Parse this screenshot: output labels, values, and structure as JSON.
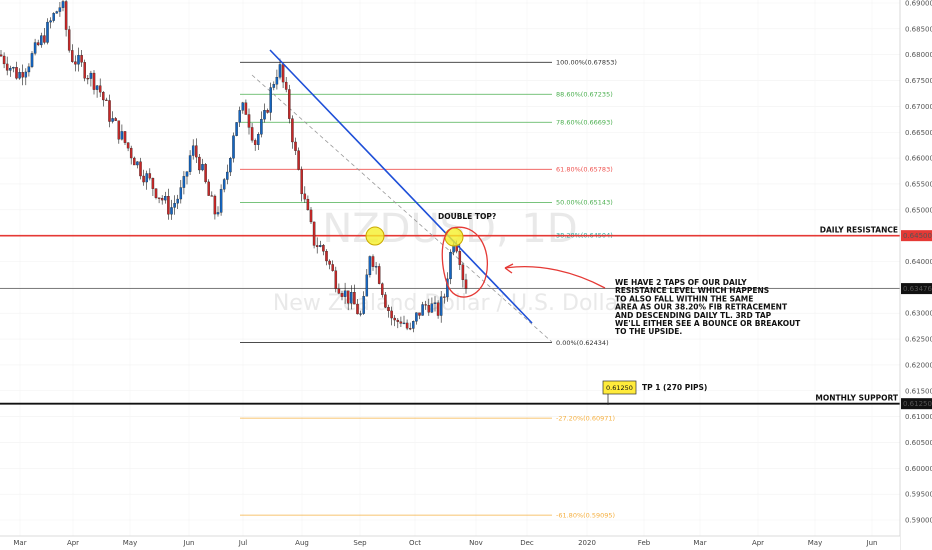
{
  "chart_data": {
    "type": "candlestick",
    "watermark": {
      "symbol": "NZDUSD, 1D",
      "name": "New Zealand Dollar / U.S. Dollar"
    },
    "ylim": [
      0.5885,
      0.6905
    ],
    "y_ticks": [
      "0.69000",
      "0.68500",
      "0.68000",
      "0.67500",
      "0.67000",
      "0.66500",
      "0.66000",
      "0.65500",
      "0.65000",
      "0.64500",
      "0.64000",
      "0.63500",
      "0.63000",
      "0.62500",
      "0.62000",
      "0.61500",
      "0.61000",
      "0.60500",
      "0.60000",
      "0.59500",
      "0.59000"
    ],
    "x_ticks": [
      {
        "label": "Mar",
        "x": 20
      },
      {
        "label": "Apr",
        "x": 73
      },
      {
        "label": "May",
        "x": 130
      },
      {
        "label": "Jun",
        "x": 189
      },
      {
        "label": "Jul",
        "x": 243
      },
      {
        "label": "Aug",
        "x": 302
      },
      {
        "label": "Sep",
        "x": 360
      },
      {
        "label": "Oct",
        "x": 415
      },
      {
        "label": "Nov",
        "x": 476
      },
      {
        "label": "Dec",
        "x": 527
      },
      {
        "label": "2020",
        "x": 587
      },
      {
        "label": "Feb",
        "x": 644
      },
      {
        "label": "Mar",
        "x": 700
      },
      {
        "label": "Apr",
        "x": 758
      },
      {
        "label": "May",
        "x": 815
      },
      {
        "label": "Jun",
        "x": 872
      }
    ],
    "current_price": "0.63476",
    "fib_levels": [
      {
        "label": "100.00%(0.67853)",
        "value": 0.67853,
        "color": "#333333"
      },
      {
        "label": "88.60%(0.67235)",
        "value": 0.67235,
        "color": "#4caf50"
      },
      {
        "label": "78.60%(0.66693)",
        "value": 0.66693,
        "color": "#4caf50"
      },
      {
        "label": "61.80%(0.65783)",
        "value": 0.65783,
        "color": "#ef5350"
      },
      {
        "label": "50.00%(0.65143)",
        "value": 0.65143,
        "color": "#4caf50"
      },
      {
        "label": "38.20%(0.64504)",
        "value": 0.64504,
        "color": "#26a69a"
      },
      {
        "label": "0.00%(0.62434)",
        "value": 0.62434,
        "color": "#333333"
      },
      {
        "label": "-27.20%(0.60971)",
        "value": 0.60971,
        "color": "#f5b041"
      },
      {
        "label": "-61.80%(0.59095)",
        "value": 0.59095,
        "color": "#f5b041"
      }
    ],
    "levels": [
      {
        "label": "DAILY RESISTANCE",
        "value": 0.645,
        "price": "0.64500",
        "color": "#e53935"
      },
      {
        "label": "MONTHLY SUPPORT",
        "value": 0.6125,
        "price": "0.61250",
        "color": "#111111"
      }
    ],
    "tp_badge": "0.61250",
    "tp_label": "TP 1 (270 PIPS)",
    "double_top_label": "DOUBLE TOP?",
    "annotation_lines": [
      "WE HAVE 2 TAPS OF OUR DAILY",
      "RESISTANCE LEVEL WHICH HAPPENS",
      "TO ALSO FALL WITHIN THE SAME",
      "AREA AS OUR 38.20% FIB RETRACEMENT",
      "AND DESCENDING DAILY TL. 3RD TAP",
      "WE'LL EITHER SEE A BOUNCE OR BREAKOUT",
      "TO THE UPSIDE."
    ],
    "path_points": [
      [
        0,
        0.68
      ],
      [
        18,
        0.676
      ],
      [
        30,
        0.679
      ],
      [
        45,
        0.684
      ],
      [
        55,
        0.688
      ],
      [
        62,
        0.69
      ],
      [
        70,
        0.68
      ],
      [
        85,
        0.677
      ],
      [
        98,
        0.674
      ],
      [
        110,
        0.668
      ],
      [
        125,
        0.663
      ],
      [
        140,
        0.658
      ],
      [
        155,
        0.654
      ],
      [
        170,
        0.65
      ],
      [
        183,
        0.654
      ],
      [
        192,
        0.662
      ],
      [
        200,
        0.659
      ],
      [
        208,
        0.653
      ],
      [
        216,
        0.649
      ],
      [
        226,
        0.656
      ],
      [
        235,
        0.667
      ],
      [
        245,
        0.67
      ],
      [
        255,
        0.663
      ],
      [
        265,
        0.668
      ],
      [
        272,
        0.674
      ],
      [
        279,
        0.678
      ],
      [
        287,
        0.671
      ],
      [
        296,
        0.66
      ],
      [
        305,
        0.651
      ],
      [
        314,
        0.644
      ],
      [
        324,
        0.642
      ],
      [
        334,
        0.637
      ],
      [
        344,
        0.634
      ],
      [
        353,
        0.632
      ],
      [
        362,
        0.629
      ],
      [
        370,
        0.642
      ],
      [
        378,
        0.638
      ],
      [
        386,
        0.632
      ],
      [
        394,
        0.628
      ],
      [
        402,
        0.629
      ],
      [
        410,
        0.626
      ],
      [
        418,
        0.63
      ],
      [
        428,
        0.632
      ],
      [
        437,
        0.63
      ],
      [
        444,
        0.633
      ],
      [
        449,
        0.64
      ],
      [
        454,
        0.645
      ],
      [
        459,
        0.642
      ],
      [
        464,
        0.636
      ],
      [
        470,
        0.635
      ]
    ]
  }
}
